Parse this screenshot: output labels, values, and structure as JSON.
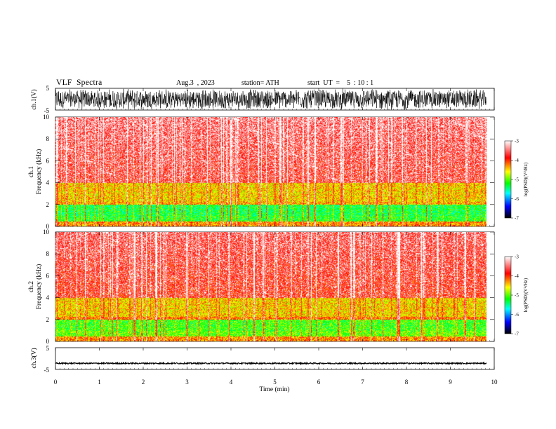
{
  "header": {
    "title": "VLF  Spectra",
    "date": "Aug.3  , 2023",
    "station": "station= ATH",
    "start_ut": "start  UT  =    5  : 10 : 1"
  },
  "chart_data": [
    {
      "type": "line",
      "panel": "ch1-waveform",
      "ylabel": "ch.1(V)",
      "ylim": [
        -5,
        5
      ],
      "y_ticks": [
        "5",
        "-5"
      ],
      "x": [
        0,
        9.83
      ],
      "description_style": "dense noise trace",
      "amplitude": 5,
      "color": "#000000"
    },
    {
      "type": "heatmap",
      "panel": "ch1-spectrogram",
      "ylabel": "ch.1\nFrequency (kHz)",
      "ylabel_line1": "ch.1",
      "ylabel_line2": "Frequency  (kHz)",
      "ylim": [
        0,
        10
      ],
      "y_ticks": [
        "0",
        "2",
        "4",
        "6",
        "8",
        "10"
      ],
      "xlim": [
        0,
        10
      ],
      "data_extent_min": 9.83,
      "bands": [
        {
          "freq_range_khz": [
            0,
            0.5
          ],
          "level": -4.3
        },
        {
          "freq_range_khz": [
            0.5,
            1.0
          ],
          "level": -5.2
        },
        {
          "freq_range_khz": [
            1.0,
            2.0
          ],
          "level": -5.3
        },
        {
          "freq_range_khz": [
            2.0,
            2.3
          ],
          "level": -4.4
        },
        {
          "freq_range_khz": [
            2.3,
            4.0
          ],
          "level": -4.5
        },
        {
          "freq_range_khz": [
            4.0,
            10.0
          ],
          "level": -3.8
        }
      ],
      "colorbar": {
        "label": "log(PSD)(V²/Hz)",
        "range": [
          -7,
          -3
        ],
        "ticks": [
          "-3",
          "-4",
          "-5",
          "-6",
          "-7"
        ],
        "colors": [
          "#ffffff",
          "#ff0000",
          "#ffff00",
          "#00ff00",
          "#00ffff",
          "#0000ff",
          "#000000"
        ]
      }
    },
    {
      "type": "heatmap",
      "panel": "ch2-spectrogram",
      "ylabel_line1": "ch.2",
      "ylabel_line2": "Frequency  (kHz)",
      "ylim": [
        0,
        10
      ],
      "y_ticks": [
        "0",
        "2",
        "4",
        "6",
        "8",
        "10"
      ],
      "xlim": [
        0,
        10
      ],
      "data_extent_min": 9.83,
      "bands": [
        {
          "freq_range_khz": [
            0,
            0.5
          ],
          "level": -4.3
        },
        {
          "freq_range_khz": [
            0.5,
            1.0
          ],
          "level": -5.0
        },
        {
          "freq_range_khz": [
            1.0,
            2.0
          ],
          "level": -5.1
        },
        {
          "freq_range_khz": [
            2.0,
            2.3
          ],
          "level": -4.2
        },
        {
          "freq_range_khz": [
            2.3,
            4.0
          ],
          "level": -4.5
        },
        {
          "freq_range_khz": [
            4.0,
            10.0
          ],
          "level": -3.9
        }
      ],
      "colorbar": {
        "label": "log(PSD)(V²/Hz)",
        "range": [
          -7,
          -3
        ],
        "ticks": [
          "-3",
          "-4",
          "-5",
          "-6",
          "-7"
        ],
        "colors": [
          "#ffffff",
          "#ff0000",
          "#ffff00",
          "#00ff00",
          "#00ffff",
          "#0000ff",
          "#000000"
        ]
      }
    },
    {
      "type": "line",
      "panel": "ch3-waveform",
      "ylabel": "ch.3(V)",
      "ylim": [
        -5,
        5
      ],
      "y_ticks": [
        "5",
        "-5"
      ],
      "x": [
        0,
        9.83
      ],
      "baseline_v": -2.2,
      "amplitude": 0.3,
      "color": "#000000"
    }
  ],
  "x_axis": {
    "label": "Time  (min)",
    "range": [
      0,
      10
    ],
    "ticks": [
      "0",
      "1",
      "2",
      "3",
      "4",
      "5",
      "6",
      "7",
      "8",
      "9",
      "10"
    ]
  }
}
